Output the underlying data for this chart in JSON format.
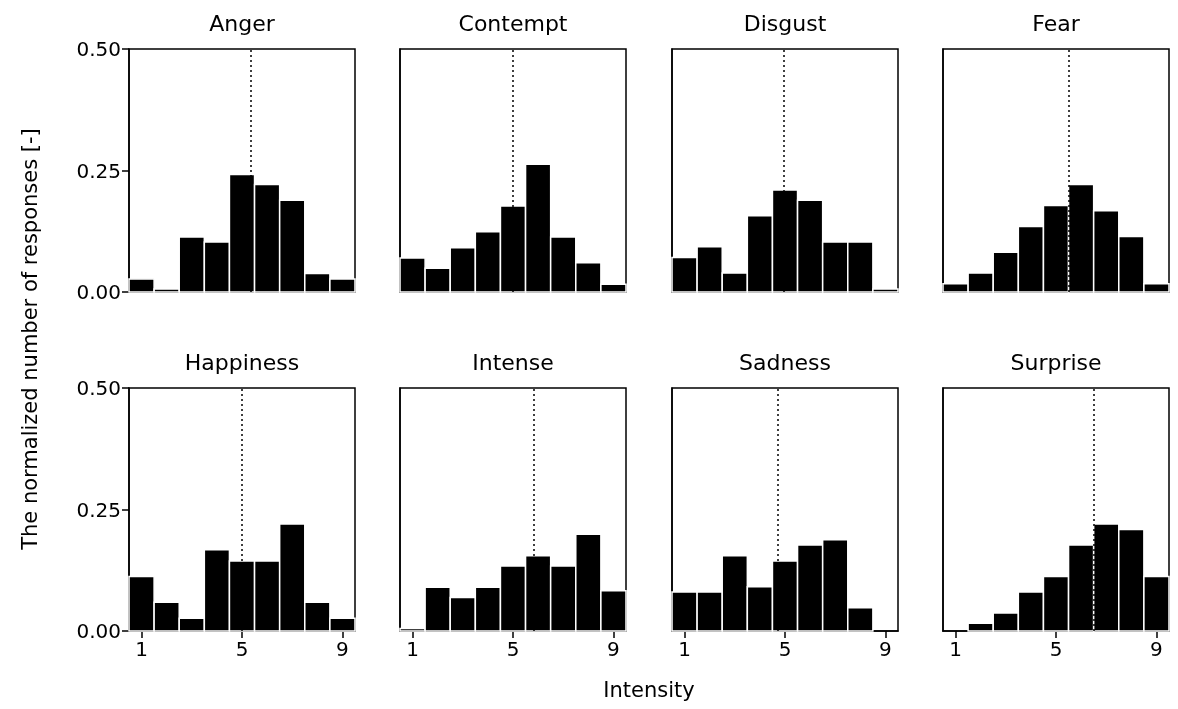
{
  "chart_data": [
    {
      "type": "histogram",
      "title": "Anger",
      "ylabel": "The normalized number of responses [-]",
      "bins": [
        0.5,
        1.5,
        2.5,
        3.5,
        4.5,
        5.5,
        6.5,
        7.5,
        8.5,
        9.5
      ],
      "values": [
        0.027,
        0.006,
        0.113,
        0.103,
        0.242,
        0.221,
        0.189,
        0.038,
        0.027
      ],
      "color": "#000000",
      "xlim": [
        0.5,
        9.5
      ],
      "xticks": [
        1,
        5,
        9
      ],
      "ylim": [
        0,
        0.5
      ],
      "yticks": [
        {
          "value": 0,
          "label": "0.00"
        },
        {
          "value": 0.25,
          "label": "0.25"
        },
        {
          "value": 0.5,
          "label": "0.50"
        }
      ],
      "tick_labels": "y",
      "ref_lines": [
        {
          "axis": "x",
          "value": 5.33,
          "color": "#000000",
          "line_style": "dotted"
        }
      ]
    },
    {
      "type": "histogram",
      "title": "Contempt",
      "bins": [
        0.5,
        1.5,
        2.5,
        3.5,
        4.5,
        5.5,
        6.5,
        7.5,
        8.5,
        9.5
      ],
      "values": [
        0.07,
        0.049,
        0.091,
        0.124,
        0.177,
        0.263,
        0.113,
        0.06,
        0.016
      ],
      "color": "#000000",
      "xlim": [
        0.5,
        9.5
      ],
      "xticks": [
        1,
        5,
        9
      ],
      "ylim": [
        0,
        0.5
      ],
      "tick_labels": false,
      "ref_lines": [
        {
          "axis": "x",
          "value": 5.0,
          "color": "#000000",
          "line_style": "dotted"
        }
      ]
    },
    {
      "type": "histogram",
      "title": "Disgust",
      "bins": [
        0.5,
        1.5,
        2.5,
        3.5,
        4.5,
        5.5,
        6.5,
        7.5,
        8.5,
        9.5
      ],
      "values": [
        0.071,
        0.093,
        0.039,
        0.157,
        0.21,
        0.189,
        0.103,
        0.103,
        0.006
      ],
      "color": "#000000",
      "xlim": [
        0.5,
        9.5
      ],
      "xticks": [
        1,
        5,
        9
      ],
      "ylim": [
        0,
        0.5
      ],
      "tick_labels": false,
      "ref_lines": [
        {
          "axis": "x",
          "value": 4.94,
          "color": "#000000",
          "line_style": "dotted"
        }
      ]
    },
    {
      "type": "histogram",
      "title": "Fear",
      "bins": [
        0.5,
        1.5,
        2.5,
        3.5,
        4.5,
        5.5,
        6.5,
        7.5,
        8.5,
        9.5
      ],
      "values": [
        0.017,
        0.039,
        0.082,
        0.135,
        0.178,
        0.221,
        0.167,
        0.114,
        0.017
      ],
      "color": "#000000",
      "xlim": [
        0.5,
        9.5
      ],
      "xticks": [
        1,
        5,
        9
      ],
      "ylim": [
        0,
        0.5
      ],
      "tick_labels": false,
      "ref_lines": [
        {
          "axis": "x",
          "value": 5.49,
          "color": "#000000",
          "line_style": "dotted"
        }
      ]
    },
    {
      "type": "histogram",
      "title": "Happiness",
      "bins": [
        0.5,
        1.5,
        2.5,
        3.5,
        4.5,
        5.5,
        6.5,
        7.5,
        8.5,
        9.5
      ],
      "values": [
        0.112,
        0.059,
        0.026,
        0.167,
        0.144,
        0.144,
        0.22,
        0.059,
        0.026
      ],
      "color": "#000000",
      "xlim": [
        0.5,
        9.5
      ],
      "xticks": [
        1,
        5,
        9
      ],
      "ylim": [
        0,
        0.5
      ],
      "yticks": [
        {
          "value": 0,
          "label": "0.00"
        },
        {
          "value": 0.25,
          "label": "0.25"
        },
        {
          "value": 0.5,
          "label": "0.50"
        }
      ],
      "ref_lines": [
        {
          "axis": "x",
          "value": 4.99,
          "color": "#000000",
          "line_style": "dotted"
        }
      ]
    },
    {
      "type": "histogram",
      "title": "Intense",
      "xlabel": "Intensity",
      "bins": [
        0.5,
        1.5,
        2.5,
        3.5,
        4.5,
        5.5,
        6.5,
        7.5,
        8.5,
        9.5
      ],
      "values": [
        0.005,
        0.09,
        0.069,
        0.09,
        0.134,
        0.155,
        0.134,
        0.199,
        0.083
      ],
      "color": "#000000",
      "xlim": [
        0.5,
        9.5
      ],
      "xticks": [
        1,
        5,
        9
      ],
      "ylim": [
        0,
        0.5
      ],
      "tick_labels": "x",
      "ref_lines": [
        {
          "axis": "x",
          "value": 5.81,
          "color": "#000000",
          "line_style": "dotted"
        }
      ]
    },
    {
      "type": "histogram",
      "title": "Sadness",
      "bins": [
        0.5,
        1.5,
        2.5,
        3.5,
        4.5,
        5.5,
        6.5,
        7.5,
        8.5,
        9.5
      ],
      "values": [
        0.08,
        0.08,
        0.155,
        0.091,
        0.144,
        0.177,
        0.188,
        0.048,
        0
      ],
      "color": "#000000",
      "xlim": [
        0.5,
        9.5
      ],
      "xticks": [
        1,
        5,
        9
      ],
      "ylim": [
        0,
        0.5
      ],
      "tick_labels": "x",
      "ref_lines": [
        {
          "axis": "x",
          "value": 4.7,
          "color": "#000000",
          "line_style": "dotted"
        }
      ]
    },
    {
      "type": "histogram",
      "title": "Surprise",
      "bins": [
        0.5,
        1.5,
        2.5,
        3.5,
        4.5,
        5.5,
        6.5,
        7.5,
        8.5,
        9.5
      ],
      "values": [
        0,
        0.016,
        0.037,
        0.08,
        0.112,
        0.177,
        0.22,
        0.209,
        0.112
      ],
      "color": "#000000",
      "xlim": [
        0.5,
        9.5
      ],
      "xticks": [
        1,
        5,
        9
      ],
      "ylim": [
        0,
        0.5
      ],
      "tick_labels": "x",
      "ref_lines": [
        {
          "axis": "x",
          "value": 6.52,
          "color": "#000000",
          "line_style": "dotted"
        }
      ]
    }
  ]
}
